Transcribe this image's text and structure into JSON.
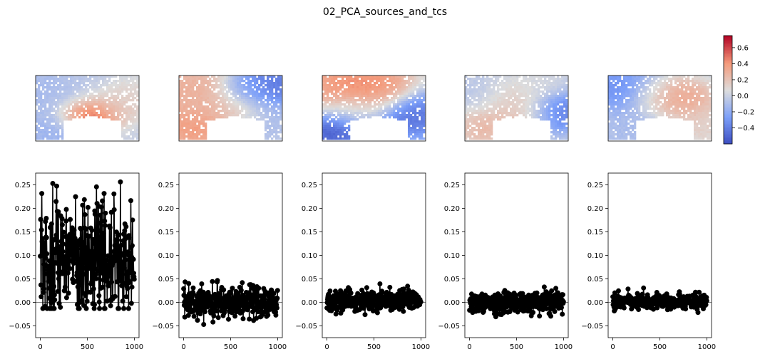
{
  "figure_title": "02_PCA_sources_and_tcs",
  "chart_data": [
    {
      "type": "heatmap",
      "description": "spatial source maps for 5 PCA components (coolwarm colormap)",
      "title": "",
      "panels": [
        {
          "index": 1,
          "regions": [
            {
              "cx": 0.5,
              "cy": 0.6,
              "w": 0.22,
              "v": 0.72
            },
            {
              "cx": 0.7,
              "cy": 0.45,
              "w": 0.25,
              "v": 0.2
            },
            {
              "cx": 0.05,
              "cy": 0.2,
              "w": 0.3,
              "v": -0.12
            },
            {
              "cx": 0.2,
              "cy": 0.85,
              "w": 0.3,
              "v": -0.15
            },
            {
              "cx": 0.9,
              "cy": 0.3,
              "w": 0.25,
              "v": 0.12
            },
            {
              "cx": 0.4,
              "cy": 0.2,
              "w": 0.35,
              "v": -0.05
            }
          ]
        },
        {
          "index": 2,
          "regions": [
            {
              "cx": 0.1,
              "cy": 0.2,
              "w": 0.4,
              "v": 0.3
            },
            {
              "cx": 0.15,
              "cy": 0.8,
              "w": 0.3,
              "v": 0.4
            },
            {
              "cx": 0.5,
              "cy": 0.5,
              "w": 0.3,
              "v": 0.18
            },
            {
              "cx": 0.85,
              "cy": 0.15,
              "w": 0.3,
              "v": -0.45
            },
            {
              "cx": 0.85,
              "cy": 0.7,
              "w": 0.25,
              "v": -0.1
            },
            {
              "cx": 0.65,
              "cy": 0.2,
              "w": 0.2,
              "v": -0.2
            }
          ]
        },
        {
          "index": 3,
          "regions": [
            {
              "cx": 0.3,
              "cy": 0.15,
              "w": 0.4,
              "v": 0.45
            },
            {
              "cx": 0.1,
              "cy": 0.85,
              "w": 0.25,
              "v": -0.55
            },
            {
              "cx": 0.85,
              "cy": 0.6,
              "w": 0.3,
              "v": -0.45
            },
            {
              "cx": 0.55,
              "cy": 0.2,
              "w": 0.25,
              "v": 0.35
            },
            {
              "cx": 0.3,
              "cy": 0.55,
              "w": 0.25,
              "v": -0.05
            }
          ]
        },
        {
          "index": 4,
          "regions": [
            {
              "cx": 0.2,
              "cy": 0.8,
              "w": 0.25,
              "v": 0.25
            },
            {
              "cx": 0.6,
              "cy": 0.55,
              "w": 0.25,
              "v": 0.25
            },
            {
              "cx": 0.85,
              "cy": 0.55,
              "w": 0.25,
              "v": -0.45
            },
            {
              "cx": 0.1,
              "cy": 0.2,
              "w": 0.25,
              "v": -0.05
            },
            {
              "cx": 0.4,
              "cy": 0.3,
              "w": 0.25,
              "v": 0.12
            },
            {
              "cx": 0.7,
              "cy": 0.15,
              "w": 0.2,
              "v": 0.05
            }
          ]
        },
        {
          "index": 5,
          "regions": [
            {
              "cx": 0.15,
              "cy": 0.2,
              "w": 0.3,
              "v": -0.35
            },
            {
              "cx": 0.7,
              "cy": 0.35,
              "w": 0.25,
              "v": 0.35
            },
            {
              "cx": 0.45,
              "cy": 0.3,
              "w": 0.25,
              "v": 0.2
            },
            {
              "cx": 0.2,
              "cy": 0.8,
              "w": 0.3,
              "v": -0.1
            },
            {
              "cx": 0.85,
              "cy": 0.75,
              "w": 0.25,
              "v": 0.15
            }
          ]
        }
      ],
      "colorbar": {
        "ticks": [
          0.6,
          0.4,
          0.2,
          0.0,
          -0.2,
          -0.4
        ],
        "tick_labels": [
          "0.6",
          "0.4",
          "0.2",
          "0.0",
          "−0.2",
          "−0.4"
        ],
        "vmin": -0.6,
        "vmax": 0.75,
        "colormap": "coolwarm"
      }
    },
    {
      "type": "scatter",
      "description": "time courses for 5 PCA components (stem-like black markers with connecting lines)",
      "title": "",
      "xlabel": "",
      "ylabel": "",
      "xlim": [
        -50,
        1050
      ],
      "ylim": [
        -0.075,
        0.275
      ],
      "xticks": [
        0,
        500,
        1000
      ],
      "xtick_labels": [
        "0",
        "500",
        "1000"
      ],
      "yticks": [
        -0.05,
        0.0,
        0.05,
        0.1,
        0.15,
        0.2,
        0.25
      ],
      "ytick_labels": [
        "−0.05",
        "0.00",
        "0.05",
        "0.10",
        "0.15",
        "0.20",
        "0.25"
      ],
      "n_points": 1000,
      "series": [
        {
          "mean": 0.09,
          "std": 0.06,
          "min": -0.013,
          "max": 0.275
        },
        {
          "mean": 0.0,
          "std": 0.017,
          "min": -0.075,
          "max": 0.065
        },
        {
          "mean": 0.003,
          "std": 0.012,
          "min": -0.045,
          "max": 0.04
        },
        {
          "mean": 0.0,
          "std": 0.012,
          "min": -0.04,
          "max": 0.055
        },
        {
          "mean": 0.002,
          "std": 0.008,
          "min": -0.042,
          "max": 0.04
        }
      ],
      "colors": {
        "marker": "#000000",
        "zero_line": "#808080"
      }
    }
  ]
}
